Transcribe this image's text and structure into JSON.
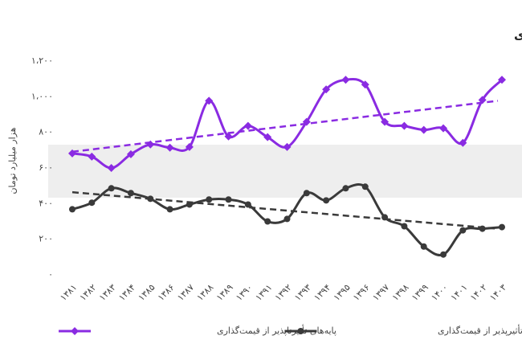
{
  "chart_data": {
    "type": "line",
    "title": "روند مجموع درآمدهای مالیاتی در پایه‌های تأثیرناپذیر و پایه‌های تأثیرپذیر از قیمت‌گذاری",
    "y_label": "هزار میلیارد تومان",
    "categories": [
      "۱۳۸۱",
      "۱۳۸۲",
      "۱۳۸۳",
      "۱۳۸۴",
      "۱۳۸۵",
      "۱۳۸۶",
      "۱۳۸۷",
      "۱۳۸۸",
      "۱۳۸۹",
      "۱۳۹۰",
      "۱۳۹۱",
      "۱۳۹۲",
      "۱۳۹۳",
      "۱۳۹۴",
      "۱۳۹۵",
      "۱۳۹۶",
      "۱۳۹۷",
      "۱۳۹۸",
      "۱۳۹۹",
      "۱۴۰۰",
      "۱۴۰۱",
      "۱۴۰۲",
      "۱۴۰۳"
    ],
    "series": [
      {
        "name": "پایه‌های تأثیرناپذیر از قیمت‌گذاری",
        "color": "#8a2be2",
        "marker": "diamond",
        "values": [
          682,
          664,
          600,
          677,
          732,
          714,
          718,
          977,
          777,
          836,
          773,
          718,
          859,
          1041,
          1095,
          1068,
          859,
          836,
          814,
          823,
          741,
          982,
          1095
        ],
        "trend": [
          691,
          977
        ]
      },
      {
        "name": "پایه‌های تأثیرپذیر از قیمت‌گذاری",
        "color": "#3a3a3a",
        "marker": "circle",
        "values": [
          368,
          405,
          486,
          459,
          427,
          368,
          395,
          423,
          423,
          395,
          300,
          314,
          459,
          418,
          486,
          495,
          323,
          273,
          159,
          114,
          250,
          259,
          268
        ],
        "trend": [
          464,
          259
        ]
      }
    ],
    "ylim": [
      0,
      1200
    ],
    "yticks": [
      {
        "value": 0,
        "label": "۰"
      },
      {
        "value": 200,
        "label": "۲۰۰"
      },
      {
        "value": 400,
        "label": "۴۰۰"
      },
      {
        "value": 600,
        "label": "۶۰۰"
      },
      {
        "value": 800,
        "label": "۸۰۰"
      },
      {
        "value": 1000,
        "label": "۱،۰۰۰"
      },
      {
        "value": 1200,
        "label": "۱،۲۰۰"
      }
    ],
    "grid": false
  }
}
